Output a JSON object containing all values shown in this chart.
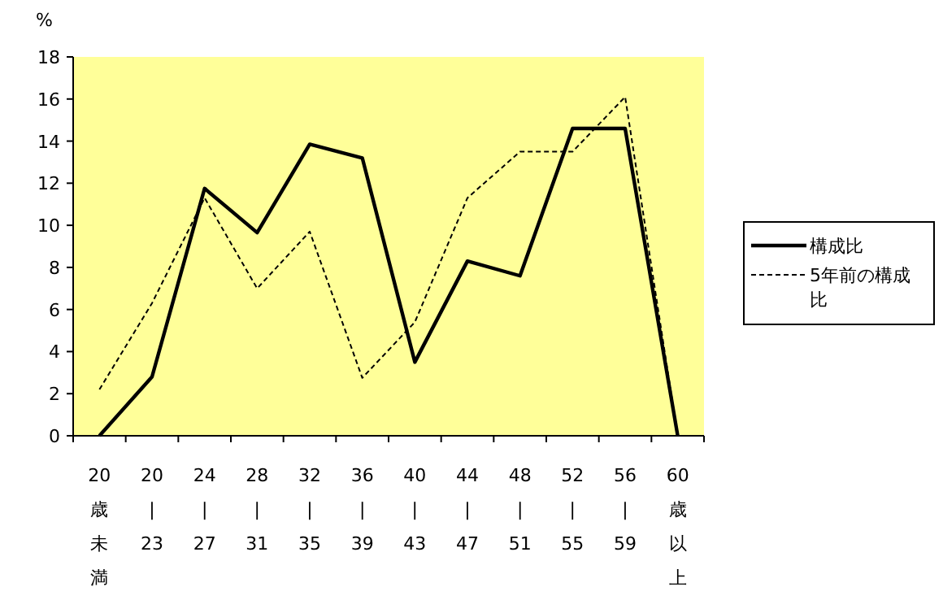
{
  "chart_data": {
    "type": "line",
    "ylabel": "%",
    "categories": [
      "20歳未満",
      "20|23",
      "24|27",
      "28|31",
      "32|35",
      "36|39",
      "40|43",
      "44|47",
      "48|51",
      "52|55",
      "56|59",
      "60歳以上"
    ],
    "series": [
      {
        "name": "構成比",
        "color": "#000000",
        "line_style": "solid",
        "values": [
          0,
          2.8,
          11.75,
          9.65,
          13.85,
          13.2,
          3.5,
          8.3,
          7.6,
          14.6,
          14.6,
          0
        ]
      },
      {
        "name": "5年前の構成比",
        "color": "#000000",
        "line_style": "dashed",
        "values": [
          2.2,
          6.3,
          11.3,
          7.0,
          9.7,
          2.75,
          5.4,
          11.3,
          13.5,
          13.5,
          16.1,
          0
        ]
      }
    ],
    "ylim": [
      0,
      18
    ],
    "yticks": [
      0,
      2,
      4,
      6,
      8,
      10,
      12,
      14,
      16,
      18
    ],
    "grid": false,
    "legend": "right"
  }
}
